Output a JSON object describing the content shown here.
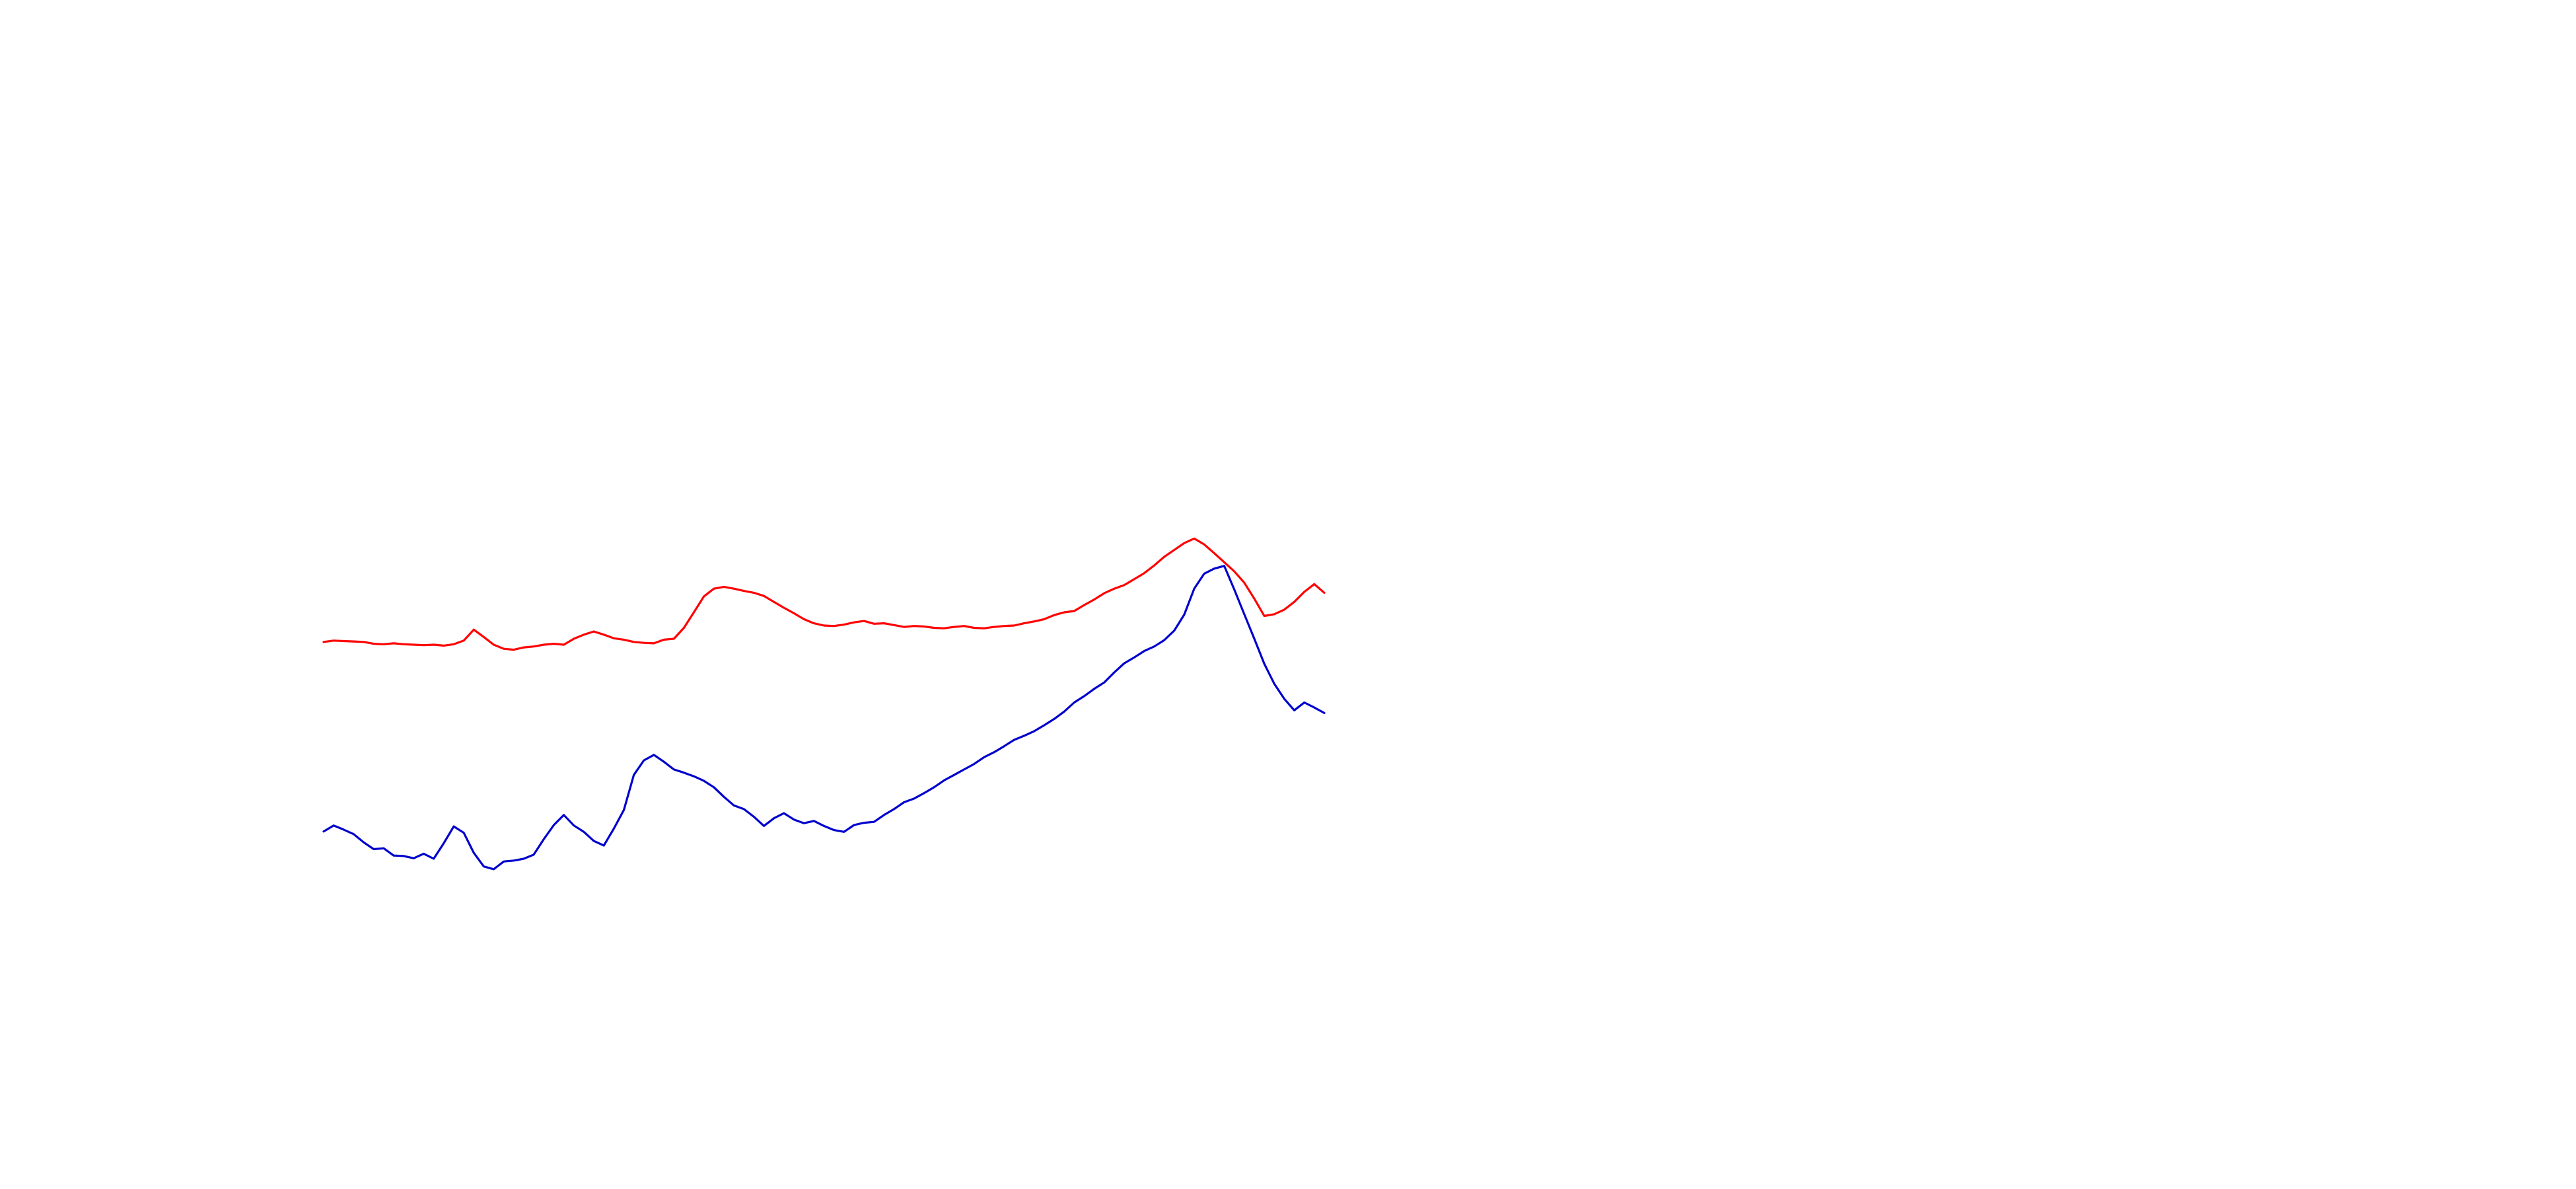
{
  "chart_data": {
    "type": "line",
    "title": "",
    "xlabel": "",
    "ylabel": "",
    "grid": false,
    "axes_visible": false,
    "xlim": [
      0,
      1
    ],
    "ylim": [
      -0.62,
      0.33
    ],
    "x": [
      0,
      0.01,
      0.02,
      0.03,
      0.04,
      0.05,
      0.06,
      0.07,
      0.08,
      0.09,
      0.1,
      0.11,
      0.12,
      0.13,
      0.14,
      0.15,
      0.16,
      0.17,
      0.18,
      0.19,
      0.2,
      0.21,
      0.22,
      0.23,
      0.24,
      0.25,
      0.26,
      0.27,
      0.28,
      0.29,
      0.3,
      0.31,
      0.32,
      0.33,
      0.34,
      0.35,
      0.36,
      0.37,
      0.38,
      0.39,
      0.4,
      0.41,
      0.42,
      0.43,
      0.44,
      0.45,
      0.46,
      0.47,
      0.48,
      0.49,
      0.5,
      0.51,
      0.52,
      0.53,
      0.54,
      0.55,
      0.56,
      0.57,
      0.58,
      0.59,
      0.6,
      0.61,
      0.62,
      0.63,
      0.64,
      0.65,
      0.66,
      0.67,
      0.68,
      0.69,
      0.7,
      0.71,
      0.72,
      0.73,
      0.74,
      0.75,
      0.76,
      0.77,
      0.78,
      0.79,
      0.8,
      0.81,
      0.82,
      0.83,
      0.84,
      0.85,
      0.86,
      0.87,
      0.88,
      0.89,
      0.9,
      0.91,
      0.92,
      0.93,
      0.94,
      0.95,
      0.96,
      0.97,
      0.98,
      0.99,
      1.0
    ],
    "series": [
      {
        "color": "#ff0000",
        "values": [
          0.001,
          0.004,
          0.003,
          0.002,
          0.001,
          -0.003,
          -0.004,
          -0.002,
          -0.004,
          -0.005,
          -0.006,
          -0.005,
          -0.007,
          -0.004,
          0.004,
          0.028,
          0.012,
          -0.005,
          -0.014,
          -0.016,
          -0.011,
          -0.009,
          -0.005,
          -0.003,
          -0.005,
          0.008,
          0.017,
          0.024,
          0.017,
          0.009,
          0.006,
          0.001,
          -0.001,
          -0.002,
          0.006,
          0.008,
          0.032,
          0.066,
          0.101,
          0.118,
          0.122,
          0.118,
          0.113,
          0.109,
          0.102,
          0.089,
          0.076,
          0.064,
          0.051,
          0.042,
          0.037,
          0.036,
          0.039,
          0.044,
          0.047,
          0.041,
          0.042,
          0.038,
          0.034,
          0.036,
          0.035,
          0.032,
          0.031,
          0.034,
          0.036,
          0.032,
          0.031,
          0.034,
          0.036,
          0.037,
          0.042,
          0.046,
          0.051,
          0.06,
          0.066,
          0.069,
          0.082,
          0.094,
          0.108,
          0.118,
          0.126,
          0.139,
          0.152,
          0.169,
          0.188,
          0.203,
          0.218,
          0.228,
          0.215,
          0.196,
          0.176,
          0.156,
          0.131,
          0.096,
          0.058,
          0.062,
          0.072,
          0.089,
          0.111,
          0.128,
          0.109
        ]
      },
      {
        "color": "#0000cd",
        "values": [
          -0.415,
          -0.402,
          -0.411,
          -0.421,
          -0.439,
          -0.454,
          -0.452,
          -0.468,
          -0.469,
          -0.474,
          -0.464,
          -0.475,
          -0.441,
          -0.404,
          -0.418,
          -0.462,
          -0.492,
          -0.498,
          -0.481,
          -0.479,
          -0.475,
          -0.466,
          -0.432,
          -0.401,
          -0.379,
          -0.402,
          -0.416,
          -0.436,
          -0.446,
          -0.409,
          -0.368,
          -0.291,
          -0.259,
          -0.247,
          -0.262,
          -0.279,
          -0.286,
          -0.294,
          -0.304,
          -0.318,
          -0.339,
          -0.358,
          -0.366,
          -0.383,
          -0.403,
          -0.386,
          -0.375,
          -0.389,
          -0.397,
          -0.392,
          -0.403,
          -0.412,
          -0.416,
          -0.401,
          -0.396,
          -0.394,
          -0.379,
          -0.366,
          -0.351,
          -0.343,
          -0.331,
          -0.318,
          -0.303,
          -0.291,
          -0.279,
          -0.267,
          -0.252,
          -0.241,
          -0.228,
          -0.214,
          -0.205,
          -0.195,
          -0.182,
          -0.168,
          -0.152,
          -0.132,
          -0.118,
          -0.102,
          -0.088,
          -0.066,
          -0.046,
          -0.033,
          -0.019,
          -0.009,
          0.005,
          0.026,
          0.061,
          0.118,
          0.151,
          0.162,
          0.168,
          0.116,
          0.062,
          0.008,
          -0.047,
          -0.091,
          -0.124,
          -0.149,
          -0.132,
          -0.143,
          -0.155
        ]
      }
    ]
  }
}
